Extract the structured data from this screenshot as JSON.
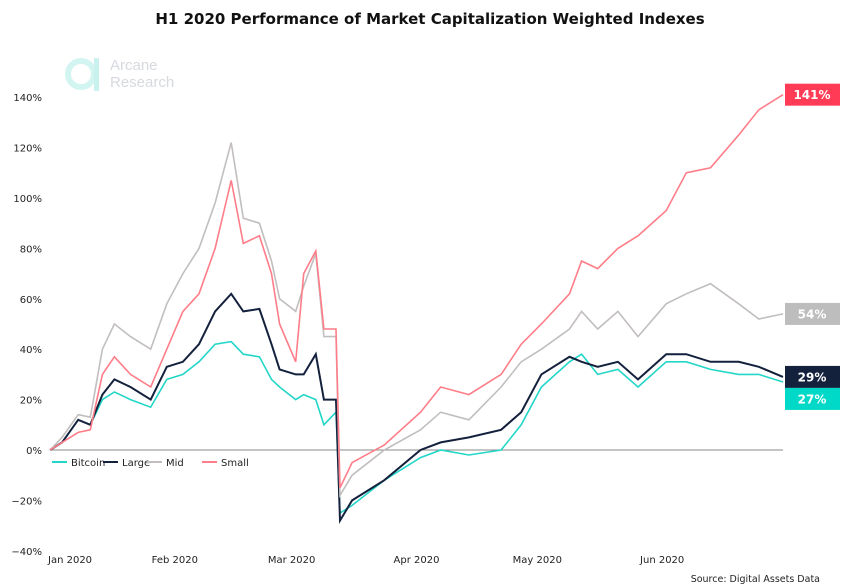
{
  "chart_data": {
    "type": "line",
    "title": "H1 2020 Performance of Market Capitalization Weighted Indexes",
    "source": "Source: Digital Assets Data",
    "logo_text": [
      "Arcane",
      "Research"
    ],
    "xlabel": "",
    "ylabel": "",
    "x_unit": "days since Jan 1 2020",
    "xlim": [
      0,
      182
    ],
    "ylim": [
      -40,
      150
    ],
    "y_ticks": [
      -40,
      -20,
      0,
      20,
      40,
      60,
      80,
      100,
      120,
      140
    ],
    "y_tick_labels": [
      "−40%",
      "−20%",
      "0%",
      "20%",
      "40%",
      "60%",
      "80%",
      "100%",
      "120%",
      "140%"
    ],
    "x_ticks": [
      0,
      31,
      60,
      91,
      121,
      152
    ],
    "x_tick_labels": [
      "Jan 2020",
      "Feb 2020",
      "Mar 2020",
      "Apr 2020",
      "May 2020",
      "Jun 2020"
    ],
    "legend_position": "bottom-left inside, below zero line",
    "x": [
      0,
      3,
      7,
      10,
      13,
      16,
      20,
      25,
      29,
      33,
      37,
      41,
      45,
      48,
      52,
      55,
      57,
      61,
      63,
      66,
      68,
      71,
      72,
      75,
      83,
      92,
      97,
      104,
      112,
      117,
      122,
      129,
      132,
      136,
      141,
      146,
      153,
      158,
      164,
      171,
      176,
      182
    ],
    "series": [
      {
        "name": "Bitcoin",
        "color": "#22d6c8",
        "end_label": "27%",
        "label_color": "#00d8c8",
        "values": [
          0,
          3,
          12,
          10,
          20,
          23,
          20,
          17,
          28,
          30,
          35,
          42,
          43,
          38,
          37,
          28,
          25,
          20,
          22,
          20,
          10,
          15,
          -25,
          -22,
          -12,
          -3,
          0,
          -2,
          0,
          10,
          25,
          35,
          38,
          30,
          32,
          25,
          35,
          35,
          32,
          30,
          30,
          27
        ]
      },
      {
        "name": "Large",
        "color": "#14213d",
        "end_label": "29%",
        "label_color": "#14213d",
        "values": [
          0,
          3,
          12,
          10,
          22,
          28,
          25,
          20,
          33,
          35,
          42,
          55,
          62,
          55,
          56,
          42,
          32,
          30,
          30,
          38,
          20,
          20,
          -28,
          -20,
          -12,
          0,
          3,
          5,
          8,
          15,
          30,
          37,
          35,
          33,
          35,
          28,
          38,
          38,
          35,
          35,
          33,
          29
        ]
      },
      {
        "name": "Mid",
        "color": "#c2bebe",
        "end_label": "54%",
        "label_color": "#bdbdbd",
        "values": [
          0,
          5,
          14,
          13,
          40,
          50,
          45,
          40,
          58,
          70,
          80,
          98,
          122,
          92,
          90,
          75,
          60,
          55,
          65,
          78,
          45,
          45,
          -18,
          -10,
          0,
          8,
          15,
          12,
          25,
          35,
          40,
          48,
          55,
          48,
          55,
          45,
          58,
          62,
          66,
          58,
          52,
          54
        ]
      },
      {
        "name": "Small",
        "color": "#ff7d88",
        "end_label": "141%",
        "label_color": "#ff3b55",
        "values": [
          0,
          3,
          7,
          8,
          30,
          37,
          30,
          25,
          40,
          55,
          62,
          80,
          107,
          82,
          85,
          70,
          50,
          35,
          70,
          79,
          48,
          48,
          -15,
          -5,
          2,
          15,
          25,
          22,
          30,
          42,
          50,
          62,
          75,
          72,
          80,
          85,
          95,
          110,
          112,
          125,
          135,
          141
        ]
      }
    ]
  }
}
